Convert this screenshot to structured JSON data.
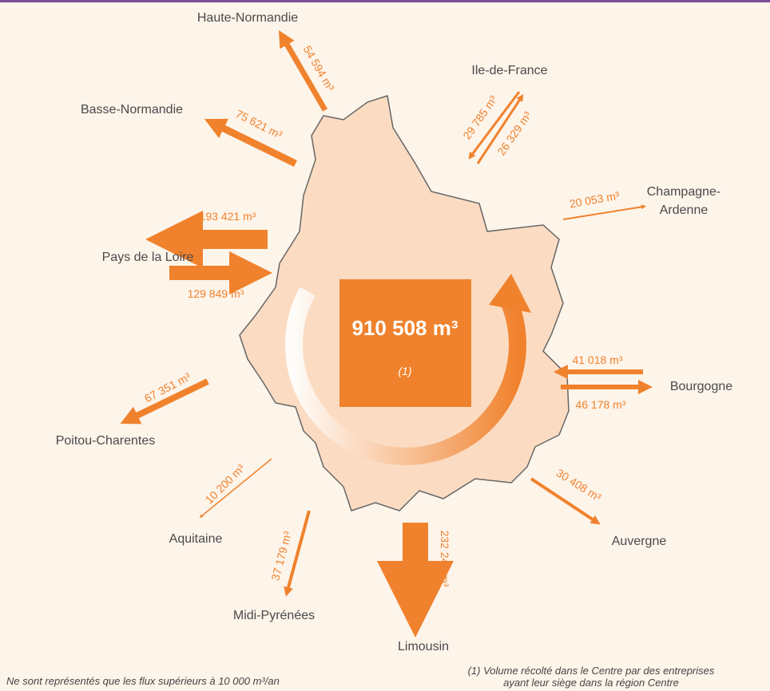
{
  "center": {
    "value": "910 508 m³",
    "note": "(1)"
  },
  "regions": [
    {
      "name": "Haute-Normandie"
    },
    {
      "name": "Basse-Normandie"
    },
    {
      "name": "Ile-de-France"
    },
    {
      "lines": [
        "Champagne-",
        "Ardenne"
      ]
    },
    {
      "name": "Pays de la Loire"
    },
    {
      "name": "Bourgogne"
    },
    {
      "name": "Poitou-Charentes"
    },
    {
      "name": "Aquitaine"
    },
    {
      "name": "Midi-Pyrénées"
    },
    {
      "name": "Limousin"
    },
    {
      "name": "Auvergne"
    }
  ],
  "flows": [
    {
      "label": "54 594 m³"
    },
    {
      "label": "75 621 m³"
    },
    {
      "label": "29 785 m³"
    },
    {
      "label": "26 329 m³"
    },
    {
      "label": "20 053 m³"
    },
    {
      "label": "193 421 m³"
    },
    {
      "label": "129 849 m³"
    },
    {
      "label": "41 018 m³"
    },
    {
      "label": "46 178 m³"
    },
    {
      "label": "67 351 m³"
    },
    {
      "label": "10 200 m³"
    },
    {
      "label": "37 179 m³"
    },
    {
      "label": "232 245 m³"
    },
    {
      "label": "30 408 m³"
    }
  ],
  "footnotes": {
    "left": "Ne sont représentés que les flux supérieurs à 10 000 m³/an",
    "right": [
      "(1) Volume récolté dans le Centre par des entreprises",
      "ayant leur siège dans la région Centre"
    ]
  }
}
